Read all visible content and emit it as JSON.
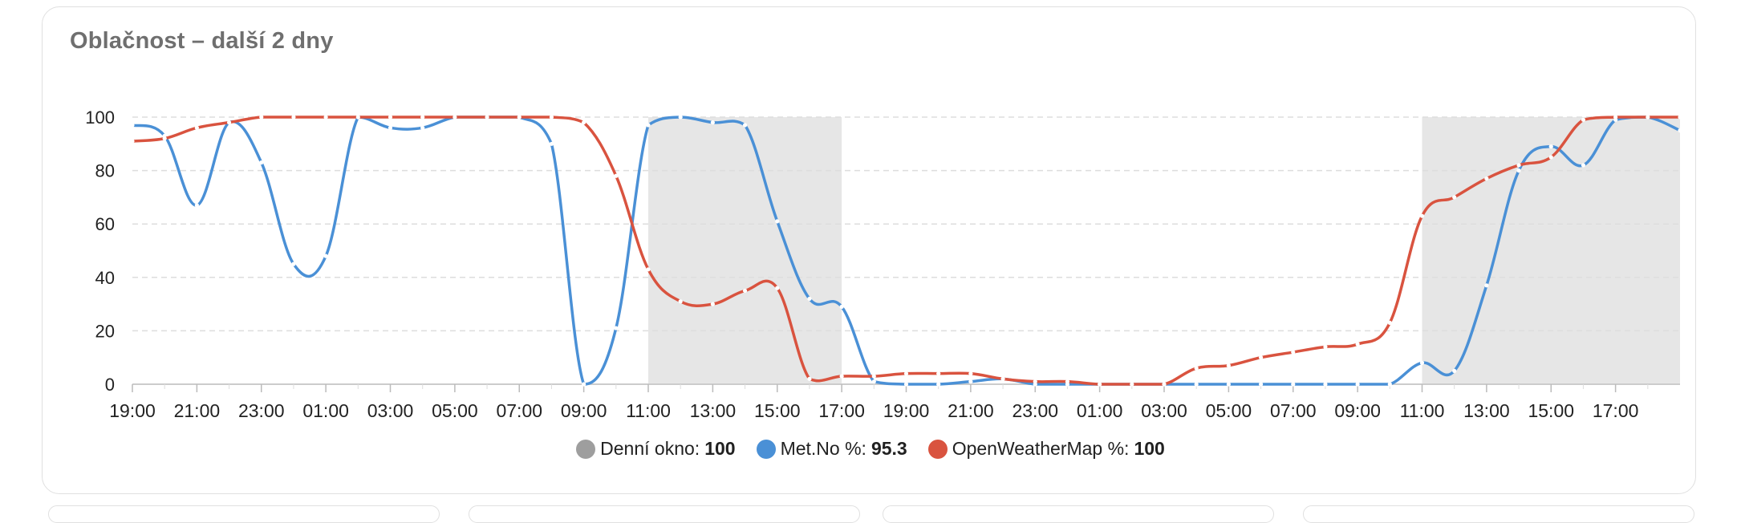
{
  "card": {
    "title": "Oblačnost – další 2 dny"
  },
  "colors": {
    "window": "#9e9e9e",
    "window_fill": "#e6e6e6",
    "metno": "#4a90d6",
    "owm": "#d9533f",
    "grid": "#dddddd",
    "axis_text": "#222222"
  },
  "legend": [
    {
      "label": "Denní okno:",
      "value": "100",
      "color": "#9e9e9e"
    },
    {
      "label": "Met.No %:",
      "value": "95.3",
      "color": "#4a90d6"
    },
    {
      "label": "OpenWeatherMap %:",
      "value": "100",
      "color": "#d9533f"
    }
  ],
  "chart_data": {
    "type": "line",
    "title": "Oblačnost – další 2 dny",
    "ylim": [
      0,
      100
    ],
    "yticks": [
      0,
      20,
      40,
      60,
      80,
      100
    ],
    "grid": true,
    "legend_position": "bottom",
    "x_start_hour": 19,
    "x_hours": 48,
    "xtick_labels": [
      "19:00",
      "21:00",
      "23:00",
      "01:00",
      "03:00",
      "05:00",
      "07:00",
      "09:00",
      "11:00",
      "13:00",
      "15:00",
      "17:00",
      "19:00",
      "21:00",
      "23:00",
      "01:00",
      "03:00",
      "05:00",
      "07:00",
      "09:00",
      "11:00",
      "13:00",
      "15:00",
      "17:00"
    ],
    "day_windows": [
      [
        16,
        22
      ],
      [
        40,
        48
      ]
    ],
    "series": [
      {
        "name": "Denní okno",
        "values_text": "100",
        "shaded_windows": true
      },
      {
        "name": "Met.No %",
        "x": [
          0,
          1,
          2,
          3,
          4,
          5,
          6,
          7,
          8,
          9,
          10,
          11,
          12,
          13,
          14,
          15,
          16,
          17,
          18,
          19,
          20,
          21,
          22,
          23,
          24,
          25,
          26,
          27,
          28,
          29,
          30,
          31,
          32,
          33,
          34,
          35,
          36,
          37,
          38,
          39,
          40,
          41,
          42,
          43,
          44,
          45,
          46,
          47,
          48
        ],
        "values": [
          97,
          93,
          67,
          98,
          83,
          45,
          48,
          100,
          96,
          96,
          100,
          100,
          100,
          90,
          0,
          21,
          97,
          100,
          98,
          97,
          61,
          32,
          29,
          1,
          0,
          0,
          1,
          2,
          0,
          0,
          0,
          0,
          0,
          0,
          0,
          0,
          0,
          0,
          0,
          0,
          8,
          5,
          37,
          80,
          89,
          82,
          99,
          100,
          95
        ]
      },
      {
        "name": "OpenWeatherMap %",
        "x": [
          0,
          1,
          2,
          3,
          4,
          5,
          6,
          7,
          8,
          9,
          10,
          11,
          12,
          13,
          14,
          15,
          16,
          17,
          18,
          19,
          20,
          21,
          22,
          23,
          24,
          25,
          26,
          27,
          28,
          29,
          30,
          31,
          32,
          33,
          34,
          35,
          36,
          37,
          38,
          39,
          40,
          41,
          42,
          43,
          44,
          45,
          46,
          47,
          48
        ],
        "values": [
          91,
          92,
          96,
          98,
          100,
          100,
          100,
          100,
          100,
          100,
          100,
          100,
          100,
          100,
          98,
          78,
          43,
          31,
          30,
          35,
          36,
          2,
          3,
          3,
          4,
          4,
          4,
          2,
          1,
          1,
          0,
          0,
          0,
          6,
          7,
          10,
          12,
          14,
          15,
          23,
          63,
          70,
          77,
          82,
          85,
          99,
          100,
          100,
          100
        ]
      }
    ]
  }
}
